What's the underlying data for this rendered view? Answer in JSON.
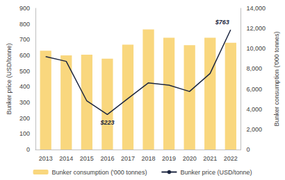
{
  "chart_data": {
    "type": "bar",
    "categories": [
      "2013",
      "2014",
      "2015",
      "2016",
      "2017",
      "2018",
      "2019",
      "2020",
      "2021",
      "2022"
    ],
    "series": [
      {
        "name": "Bunker consumption ('000 tonnes)",
        "type": "bar",
        "axis": "y2",
        "color": "#f9d77e",
        "values": [
          9800,
          9330,
          9400,
          9000,
          10400,
          11900,
          11080,
          10340,
          11080,
          10580
        ]
      },
      {
        "name": "Bunker price (USD/tonne)",
        "type": "line",
        "color": "#1c2640",
        "values": [
          592,
          562,
          310,
          223,
          325,
          425,
          410,
          370,
          485,
          763
        ]
      }
    ],
    "y_label": "Bunker price (USD/tonne)",
    "y2_label": "Bunker consumption ('000 tonnes)",
    "ylim": [
      0,
      900
    ],
    "yticks": [
      0,
      100,
      200,
      300,
      400,
      500,
      600,
      700,
      800,
      900
    ],
    "y2lim": [
      0,
      14000
    ],
    "y2ticks": [
      0,
      {
        "value": 2000,
        "label": "2,000"
      },
      {
        "value": 4000,
        "label": "4,000"
      },
      {
        "value": 6000,
        "label": "6,000"
      },
      {
        "value": 8000,
        "label": "8,000"
      },
      {
        "value": 10000,
        "label": "10,000"
      },
      {
        "value": 12000,
        "label": "12,000"
      },
      {
        "value": 14000,
        "label": "14,000"
      }
    ],
    "annotations": [
      {
        "category": "2016",
        "text": "$223"
      },
      {
        "category": "2022",
        "text": "$763"
      }
    ],
    "legend": "bottom",
    "grid": false
  }
}
